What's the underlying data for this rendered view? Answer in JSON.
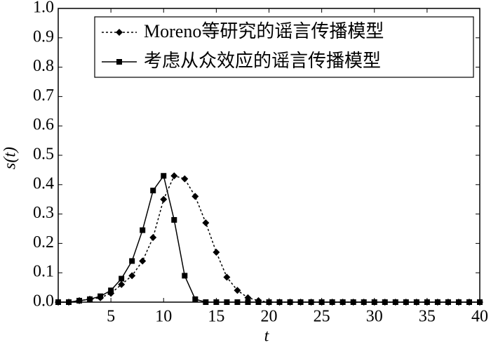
{
  "chart_data": {
    "type": "line",
    "xlabel": "t",
    "ylabel": "s(t)",
    "x": [
      0,
      1,
      2,
      3,
      4,
      5,
      6,
      7,
      8,
      9,
      10,
      11,
      12,
      13,
      14,
      15,
      16,
      17,
      18,
      19,
      20,
      21,
      22,
      23,
      24,
      25,
      26,
      27,
      28,
      29,
      30,
      31,
      32,
      33,
      34,
      35,
      36,
      37,
      38,
      39,
      40
    ],
    "series": [
      {
        "name": "Moreno等研究的谣言传播模型",
        "color": "#000000",
        "dash": "3,3",
        "marker": "diamond",
        "values": [
          0,
          0,
          0.005,
          0.01,
          0.015,
          0.03,
          0.06,
          0.09,
          0.14,
          0.22,
          0.35,
          0.43,
          0.42,
          0.36,
          0.27,
          0.17,
          0.085,
          0.04,
          0.015,
          0.005,
          0,
          0,
          0,
          0,
          0,
          0,
          0,
          0,
          0,
          0,
          0,
          0,
          0,
          0,
          0,
          0,
          0,
          0,
          0,
          0,
          0
        ]
      },
      {
        "name": "考虑从众效应的谣言传播模型",
        "color": "#000000",
        "dash": "none",
        "marker": "square",
        "values": [
          0,
          0,
          0.005,
          0.01,
          0.02,
          0.04,
          0.08,
          0.14,
          0.245,
          0.38,
          0.43,
          0.28,
          0.09,
          0.01,
          0,
          0,
          0,
          0,
          0,
          0,
          0,
          0,
          0,
          0,
          0,
          0,
          0,
          0,
          0,
          0,
          0,
          0,
          0,
          0,
          0,
          0,
          0,
          0,
          0,
          0,
          0
        ]
      }
    ],
    "xlim": [
      0,
      40
    ],
    "xticks": [
      5,
      10,
      15,
      20,
      25,
      30,
      35,
      40
    ],
    "ylim": [
      0,
      1
    ],
    "yticks": [
      {
        "value": 0,
        "label": "0.0"
      },
      {
        "value": 0.1,
        "label": "0.1"
      },
      {
        "value": 0.2,
        "label": "0.2"
      },
      {
        "value": 0.3,
        "label": "0.3"
      },
      {
        "value": 0.4,
        "label": "0.4"
      },
      {
        "value": 0.5,
        "label": "0.5"
      },
      {
        "value": 0.6,
        "label": "0.6"
      },
      {
        "value": 0.7,
        "label": "0.7"
      },
      {
        "value": 0.8,
        "label": "0.8"
      },
      {
        "value": 0.9,
        "label": "0.9"
      },
      {
        "value": 1,
        "label": "1.0"
      }
    ],
    "legend": "upper right",
    "grid": false
  }
}
